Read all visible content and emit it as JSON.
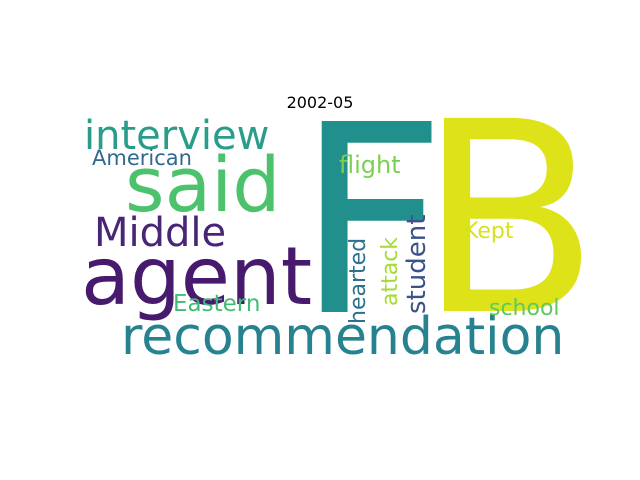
{
  "title": "2002-05",
  "words": [
    {
      "key": "F",
      "text": "F",
      "color": "#21908d"
    },
    {
      "key": "B",
      "text": "B",
      "color": "#dde318"
    },
    {
      "key": "interview",
      "text": "interview",
      "color": "#2a9d8a"
    },
    {
      "key": "said",
      "text": "said",
      "color": "#4cc26c"
    },
    {
      "key": "American",
      "text": "American",
      "color": "#31688e"
    },
    {
      "key": "Middle",
      "text": "Middle",
      "color": "#482575"
    },
    {
      "key": "agent",
      "text": "agent",
      "color": "#471a6e"
    },
    {
      "key": "recommendation",
      "text": "recommendation",
      "color": "#26828e"
    },
    {
      "key": "Eastern",
      "text": "Eastern",
      "color": "#3fbc73"
    },
    {
      "key": "flight",
      "text": "flight",
      "color": "#7ad151"
    },
    {
      "key": "Kept",
      "text": "Kept",
      "color": "#d8e219"
    },
    {
      "key": "school",
      "text": "school",
      "color": "#5ec962"
    },
    {
      "key": "student",
      "text": "student",
      "color": "#3b528b"
    },
    {
      "key": "attack",
      "text": "attack",
      "color": "#a5db36"
    },
    {
      "key": "hearted",
      "text": "hearted",
      "color": "#2c728e"
    }
  ]
}
